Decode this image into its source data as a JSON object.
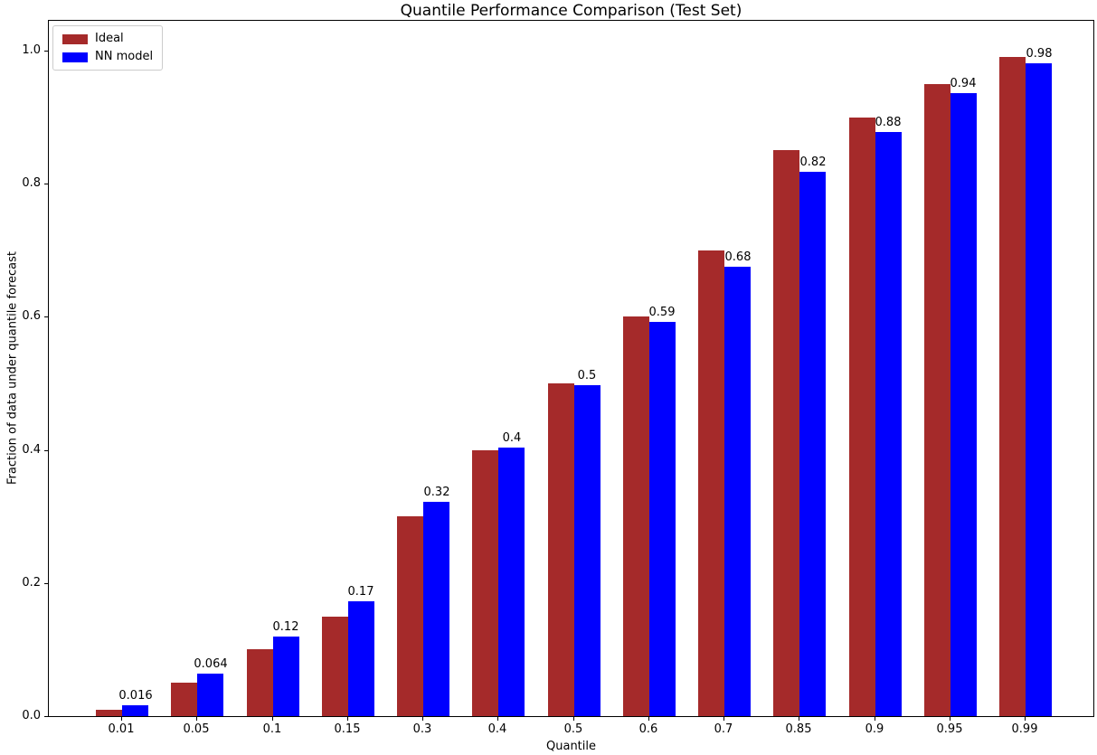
{
  "figure": {
    "title": "Quantile Performance Comparison (Test Set)",
    "xlabel": "Quantile",
    "ylabel": "Fraction of data under quantile forecast"
  },
  "legend": {
    "entries": [
      {
        "label": "Ideal",
        "color": "#A52A2A"
      },
      {
        "label": "NN model",
        "color": "#0000FF"
      }
    ]
  },
  "chart_data": {
    "type": "bar",
    "title": "Quantile Performance Comparison (Test Set)",
    "xlabel": "Quantile",
    "ylabel": "Fraction of data under quantile forecast",
    "categories": [
      "0.01",
      "0.05",
      "0.1",
      "0.15",
      "0.3",
      "0.4",
      "0.5",
      "0.6",
      "0.7",
      "0.85",
      "0.9",
      "0.95",
      "0.99"
    ],
    "series": [
      {
        "name": "Ideal",
        "color": "#A52A2A",
        "values": [
          0.01,
          0.05,
          0.1,
          0.15,
          0.3,
          0.4,
          0.5,
          0.6,
          0.7,
          0.85,
          0.9,
          0.95,
          0.99
        ]
      },
      {
        "name": "NN model",
        "color": "#0000FF",
        "values": [
          0.016,
          0.064,
          0.119,
          0.172,
          0.322,
          0.403,
          0.497,
          0.592,
          0.676,
          0.818,
          0.878,
          0.936,
          0.981
        ],
        "bar_labels": [
          "0.016",
          "0.064",
          "0.12",
          "0.17",
          "0.32",
          "0.4",
          "0.5",
          "0.59",
          "0.68",
          "0.82",
          "0.88",
          "0.94",
          "0.98"
        ]
      }
    ],
    "ytick_labels": [
      "0.0",
      "0.2",
      "0.4",
      "0.6",
      "0.8",
      "1.0"
    ],
    "ytick_values": [
      0.0,
      0.2,
      0.4,
      0.6,
      0.8,
      1.0
    ],
    "ylim": [
      0,
      1.045
    ],
    "grid": false,
    "legend_position": "upper left",
    "background": "#ffffff"
  }
}
